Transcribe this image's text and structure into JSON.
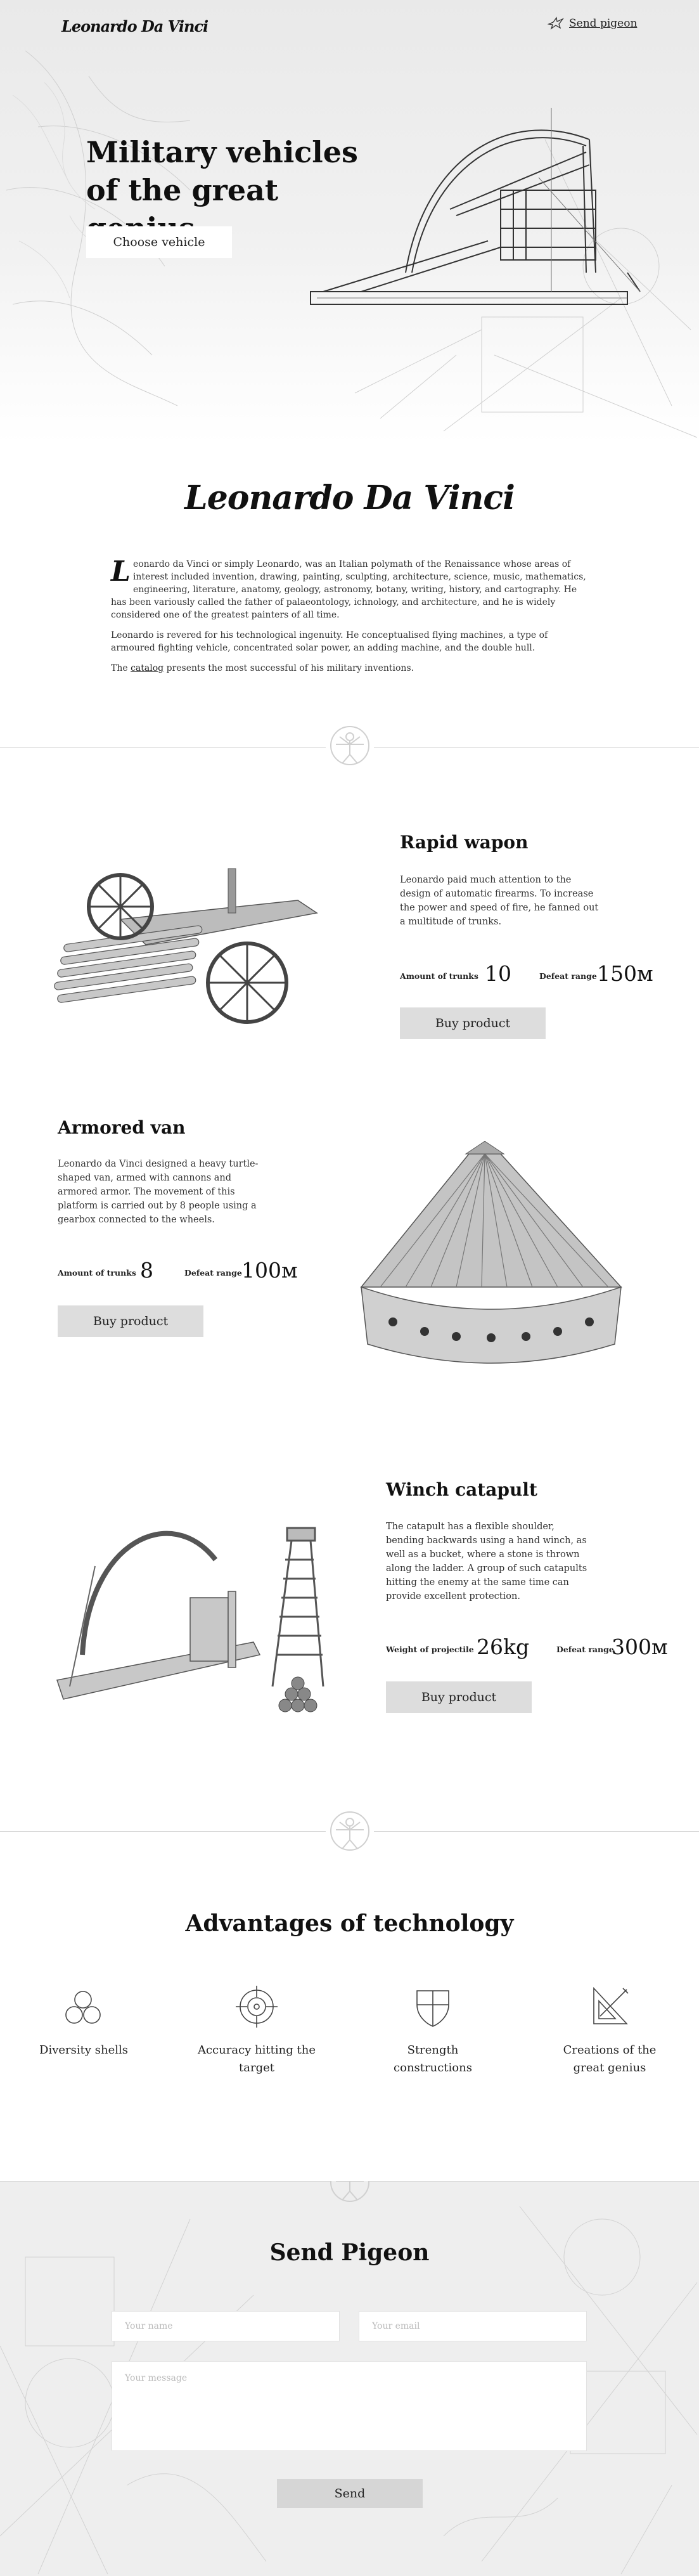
{
  "header": {
    "logo": "Leonardo Da Vinci",
    "pigeon_link": "Send pigeon"
  },
  "hero": {
    "title": "Military vehicles of the great genius",
    "cta": "Choose vehicle"
  },
  "intro": {
    "logo": "Leonardo Da Vinci",
    "dropcap": "L",
    "p1_rest": "eonardo da Vinci or simply Leonardo, was an Italian polymath of the Renaissance whose areas of interest included invention, drawing, painting, sculpting, architecture, science, music, mathematics, engineering, literature, anatomy, geology, astronomy, botany, writing, history, and cartography. He has been variously called the father of palaeontology, ichnology, and architecture, and he is widely considered one of the greatest painters of all time.",
    "p2": "Leonardo is revered for his technological ingenuity. He conceptualised flying machines, a type of armoured fighting vehicle, concentrated solar power, an adding machine, and the double hull.",
    "p3_before": "The ",
    "p3_link": "catalog",
    "p3_after": " presents the most successful of his military inventions."
  },
  "products": [
    {
      "title": "Rapid wapon",
      "description": "Leonardo paid much attention to the design of automatic firearms. To increase the power and speed of fire, he fanned out a multitude of trunks.",
      "stat1_label": "Amount of trunks",
      "stat1_value": "10",
      "stat2_label": "Defeat range",
      "stat2_value": "150м",
      "button": "Buy product"
    },
    {
      "title": "Armored van",
      "description": "Leonardo da Vinci designed a heavy turtle-shaped van, armed with cannons and armored armor. The movement of this platform is carried out by 8 people using a gearbox connected to the wheels.",
      "stat1_label": "Amount of trunks",
      "stat1_value": "8",
      "stat2_label": "Defeat range",
      "stat2_value": "100м",
      "button": "Buy product"
    },
    {
      "title": "Winch catapult",
      "description": "The catapult has a flexible shoulder, bending backwards using a hand winch, as well as a bucket, where a stone is thrown along the ladder. A group of such catapults hitting the enemy at the same time can provide excellent protection.",
      "stat1_label": "Weight of projectile",
      "stat1_value": "26kg",
      "stat2_label": "Defeat range",
      "stat2_value": "300м",
      "button": "Buy product"
    }
  ],
  "advantages": {
    "title": "Advantages of technology",
    "items": [
      {
        "label": "Diversity shells",
        "icon": "shells-icon"
      },
      {
        "label": "Accuracy hitting the target",
        "icon": "target-icon"
      },
      {
        "label": "Strength constructions",
        "icon": "shield-icon"
      },
      {
        "label": "Creations of the great genius",
        "icon": "drafting-tools-icon"
      }
    ]
  },
  "pigeon_form": {
    "title": "Send Pigeon",
    "name_placeholder": "Your name",
    "email_placeholder": "Your email",
    "message_placeholder": "Your message",
    "send": "Send"
  },
  "colors": {
    "button_gray": "#dddddd",
    "separator": "#cfcfcf",
    "text_dark": "#111111"
  }
}
